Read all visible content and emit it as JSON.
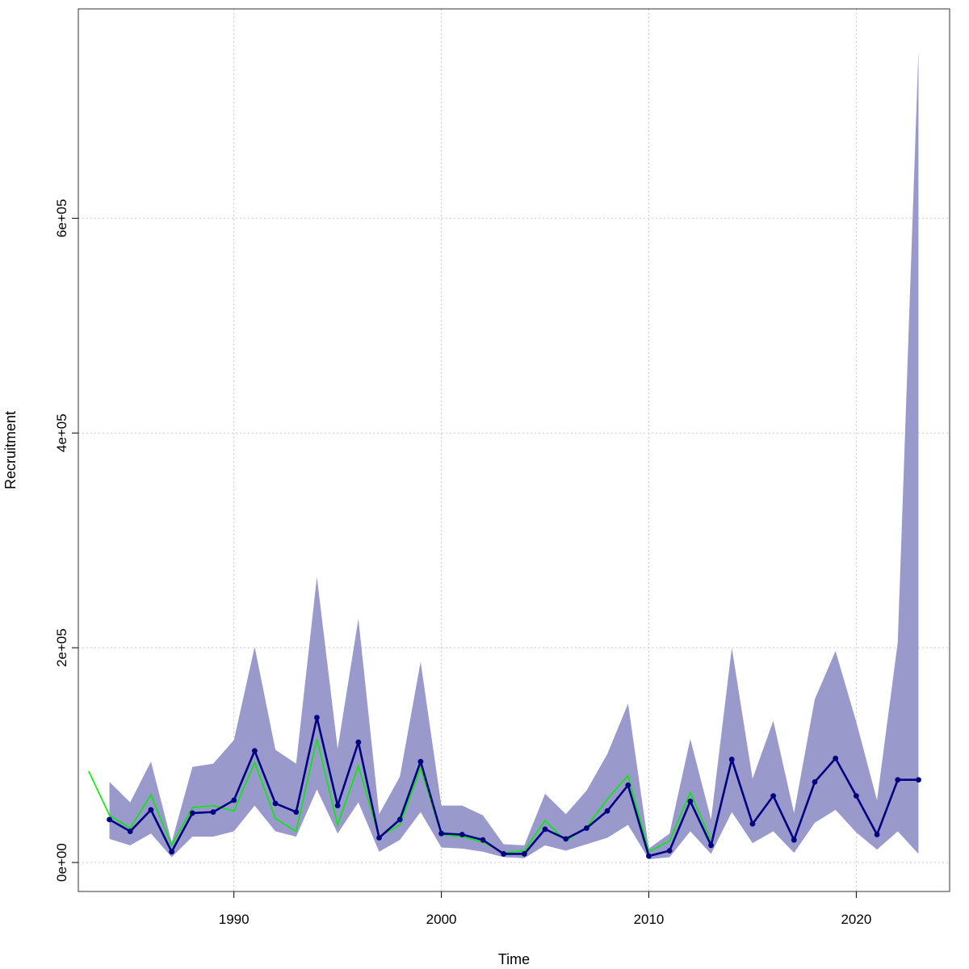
{
  "chart_data": {
    "type": "line",
    "title": "",
    "xlabel": "Time",
    "ylabel": "Recruitment",
    "xlim": [
      1982.5,
      2024.5
    ],
    "ylim": [
      -27000,
      795000
    ],
    "x_ticks": [
      1990,
      2000,
      2010,
      2020
    ],
    "x_tick_labels": [
      "1990",
      "2000",
      "2010",
      "2020"
    ],
    "y_ticks": [
      0,
      200000,
      400000,
      600000
    ],
    "y_tick_labels": [
      "0e+00",
      "2e+05",
      "4e+05",
      "6e+05"
    ],
    "grid": true,
    "colors": {
      "band": "#9999cc",
      "estimate": "#000080",
      "comparison": "#00ee00",
      "grid": "#c8c8c8",
      "box": "#555555"
    },
    "series": [
      {
        "role": "confidence-band",
        "x": [
          1984,
          1985,
          1986,
          1987,
          1988,
          1989,
          1990,
          1991,
          1992,
          1993,
          1994,
          1995,
          1996,
          1997,
          1998,
          1999,
          2000,
          2001,
          2002,
          2003,
          2004,
          2005,
          2006,
          2007,
          2008,
          2009,
          2010,
          2011,
          2012,
          2013,
          2014,
          2015,
          2016,
          2017,
          2018,
          2019,
          2020,
          2021,
          2022,
          2023
        ],
        "upper": [
          75000,
          56000,
          94000,
          19000,
          89000,
          92000,
          114000,
          201000,
          105000,
          92000,
          266000,
          106000,
          227000,
          45000,
          80000,
          187000,
          53000,
          53000,
          44000,
          17000,
          16000,
          64000,
          45000,
          67000,
          101000,
          148000,
          13000,
          27000,
          115000,
          40000,
          200000,
          78000,
          132000,
          46000,
          152000,
          197000,
          131000,
          58000,
          205000,
          757000
        ],
        "lower": [
          22000,
          16000,
          27000,
          5000,
          24000,
          24000,
          29000,
          53000,
          29000,
          24000,
          68000,
          27000,
          56000,
          10000,
          21000,
          47000,
          14000,
          13000,
          10000,
          5000,
          4000,
          16000,
          11000,
          17000,
          23000,
          35000,
          3000,
          5000,
          29000,
          8000,
          47000,
          18000,
          29000,
          9000,
          37000,
          49000,
          28000,
          12000,
          29000,
          8000
        ]
      },
      {
        "role": "estimate",
        "x": [
          1984,
          1985,
          1986,
          1987,
          1988,
          1989,
          1990,
          1991,
          1992,
          1993,
          1994,
          1995,
          1996,
          1997,
          1998,
          1999,
          2000,
          2001,
          2002,
          2003,
          2004,
          2005,
          2006,
          2007,
          2008,
          2009,
          2010,
          2011,
          2012,
          2013,
          2014,
          2015,
          2016,
          2017,
          2018,
          2019,
          2020,
          2021,
          2022,
          2023
        ],
        "values": [
          40000,
          29000,
          49000,
          10000,
          46000,
          47000,
          58000,
          104000,
          55000,
          47000,
          135000,
          53000,
          112000,
          23000,
          40000,
          94000,
          27000,
          26000,
          21000,
          8000,
          8000,
          31000,
          22000,
          32000,
          48000,
          72000,
          6000,
          11000,
          57000,
          16000,
          96000,
          36000,
          62000,
          21000,
          75000,
          97000,
          62000,
          26000,
          77000,
          77000
        ]
      },
      {
        "role": "comparison",
        "x": [
          1983,
          1984,
          1985,
          1986,
          1987,
          1988,
          1989,
          1990,
          1991,
          1992,
          1993,
          1994,
          1995,
          1996,
          1997,
          1998,
          1999,
          2000,
          2001,
          2002,
          2003,
          2004,
          2005,
          2006,
          2007,
          2008,
          2009,
          2010,
          2011,
          2012,
          2013
        ],
        "values": [
          85000,
          44000,
          32000,
          63000,
          16000,
          51000,
          53000,
          48000,
          93000,
          41000,
          29000,
          115000,
          35000,
          90000,
          24000,
          35000,
          88000,
          26000,
          24000,
          19000,
          9000,
          11000,
          39000,
          20000,
          33000,
          59000,
          81000,
          10000,
          20000,
          65000,
          21000
        ]
      }
    ]
  }
}
